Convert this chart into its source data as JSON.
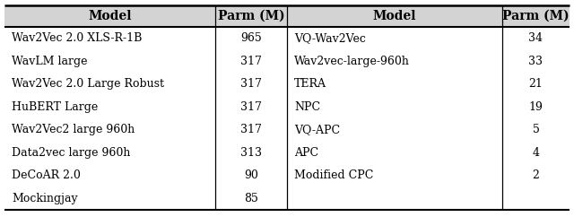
{
  "left_models": [
    "Wav2Vec 2.0 XLS-R-1B",
    "WavLM large",
    "Wav2Vec 2.0 Large Robust",
    "HuBERT Large",
    "Wav2Vec2 large 960h",
    "Data2vec large 960h",
    "DeCoAR 2.0",
    "Mockingjay"
  ],
  "left_params": [
    "965",
    "317",
    "317",
    "317",
    "317",
    "313",
    "90",
    "85"
  ],
  "right_models": [
    "VQ-Wav2Vec",
    "Wav2vec-large-960h",
    "TERA",
    "NPC",
    "VQ-APC",
    "APC",
    "Modified CPC",
    ""
  ],
  "right_params": [
    "34",
    "33",
    "21",
    "19",
    "5",
    "4",
    "2",
    ""
  ],
  "col_headers": [
    "Model",
    "Parm (M)",
    "Model",
    "Parm (M)"
  ],
  "header_bg": "#d3d3d3",
  "bg_color": "#ffffff",
  "text_color": "#000000",
  "font_size": 9.0,
  "header_font_size": 10.0
}
